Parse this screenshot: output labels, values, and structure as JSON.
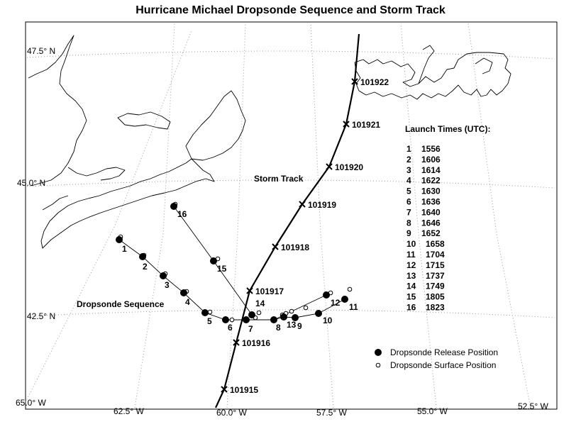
{
  "title": "Hurricane Michael Dropsonde Sequence and Storm Track",
  "lat_labels": [
    {
      "text": "47.5° N",
      "value": 47.5
    },
    {
      "text": "45.0° N",
      "value": 45.0
    },
    {
      "text": "42.5° N",
      "value": 42.5
    }
  ],
  "lon_labels": [
    {
      "text": "65.0° W",
      "value": -65.0
    },
    {
      "text": "62.5° W",
      "value": -62.5
    },
    {
      "text": "60.0° W",
      "value": -60.0
    },
    {
      "text": "57.5° W",
      "value": -57.5
    },
    {
      "text": "55.0° W",
      "value": -55.0
    },
    {
      "text": "52.5° W",
      "value": -52.5
    }
  ],
  "storm_track": {
    "label": "Storm Track",
    "fixes": [
      {
        "label": "101915"
      },
      {
        "label": "101916"
      },
      {
        "label": "101917"
      },
      {
        "label": "101918"
      },
      {
        "label": "101919"
      },
      {
        "label": "101920"
      },
      {
        "label": "101921"
      },
      {
        "label": "101922"
      }
    ]
  },
  "dropsonde_sequence_label": "Dropsonde Sequence",
  "dropsondes": [
    {
      "id": "1",
      "time": "1556"
    },
    {
      "id": "2",
      "time": "1606"
    },
    {
      "id": "3",
      "time": "1614"
    },
    {
      "id": "4",
      "time": "1622"
    },
    {
      "id": "5",
      "time": "1630"
    },
    {
      "id": "6",
      "time": "1636"
    },
    {
      "id": "7",
      "time": "1640"
    },
    {
      "id": "8",
      "time": "1646"
    },
    {
      "id": "9",
      "time": "1652"
    },
    {
      "id": "10",
      "time": "1658"
    },
    {
      "id": "11",
      "time": "1704"
    },
    {
      "id": "12",
      "time": "1715"
    },
    {
      "id": "13",
      "time": "1737"
    },
    {
      "id": "14",
      "time": "1749"
    },
    {
      "id": "15",
      "time": "1805"
    },
    {
      "id": "16",
      "time": "1823"
    }
  ],
  "launch_times_title": "Launch Times (UTC):",
  "legend": {
    "release": "Dropsonde Release Position",
    "surface": "Dropsonde Surface Position"
  }
}
